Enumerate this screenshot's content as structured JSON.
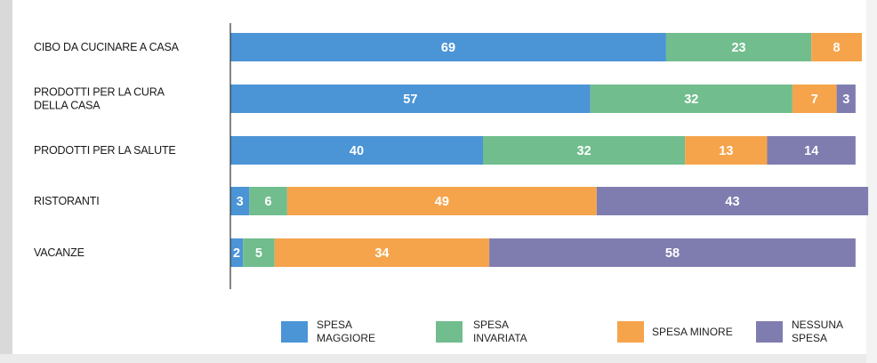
{
  "chart_data": {
    "type": "bar",
    "orientation": "horizontal",
    "stacked": true,
    "percent_stacked": true,
    "categories": [
      "CIBO DA CUCINARE A CASA",
      "PRODOTTI PER LA CURA DELLA CASA",
      "PRODOTTI PER LA SALUTE",
      "RISTORANTI",
      "VACANZE"
    ],
    "series": [
      {
        "name": "SPESA MAGGIORE",
        "color": "#4b94d6",
        "values": [
          69,
          57,
          40,
          3,
          2
        ]
      },
      {
        "name": "SPESA INVARIATA",
        "color": "#71bd8e",
        "values": [
          23,
          32,
          32,
          6,
          5
        ]
      },
      {
        "name": "SPESA MINORE",
        "color": "#f5a44b",
        "values": [
          8,
          7,
          13,
          49,
          34
        ]
      },
      {
        "name": "NESSUNA SPESA",
        "color": "#7f7db0",
        "values": [
          0,
          3,
          14,
          43,
          58
        ]
      }
    ],
    "xlim": [
      0,
      100
    ],
    "data_labels": true,
    "grid": false,
    "legend_position": "bottom",
    "title": "",
    "xlabel": "",
    "ylabel": ""
  },
  "category_label_lines": [
    [
      "CIBO DA CUCINARE A CASA"
    ],
    [
      "PRODOTTI PER LA CURA",
      "DELLA CASA"
    ],
    [
      "PRODOTTI PER LA SALUTE"
    ],
    [
      "RISTORANTI"
    ],
    [
      "VACANZE"
    ]
  ],
  "legend_label_lines": [
    [
      "SPESA",
      "MAGGIORE"
    ],
    [
      "SPESA",
      "INVARIATA"
    ],
    [
      "SPESA MINORE"
    ],
    [
      "NESSUNA",
      "SPESA"
    ]
  ]
}
